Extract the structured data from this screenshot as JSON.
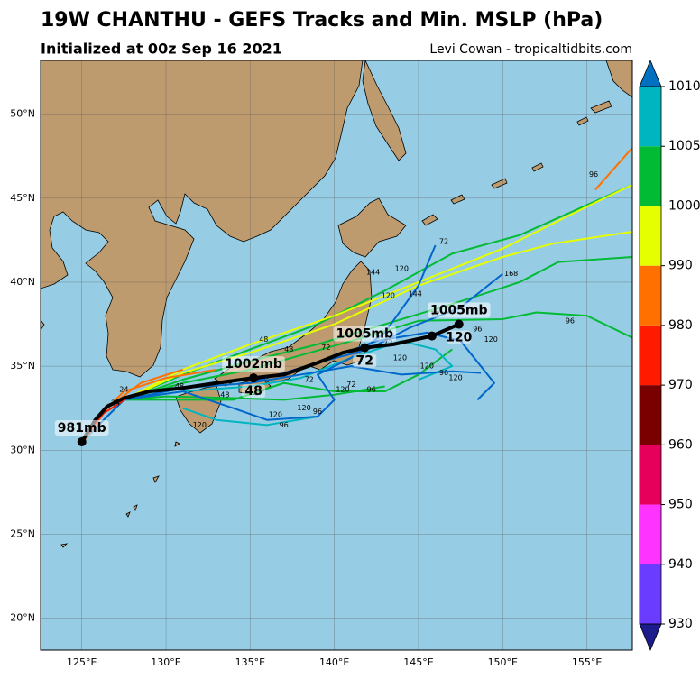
{
  "header": {
    "title": "19W CHANTHU - GEFS Tracks and Min. MSLP (hPa)",
    "subtitle": "Initialized at 00z Sep 16 2021",
    "credit": "Levi Cowan - tropicaltidbits.com"
  },
  "map": {
    "lon_range": [
      122.55,
      157.7
    ],
    "lat_range": [
      18.1,
      53.2
    ],
    "lon_ticks": [
      {
        "value": 125,
        "label": "125°E"
      },
      {
        "value": 130,
        "label": "130°E"
      },
      {
        "value": 135,
        "label": "135°E"
      },
      {
        "value": 140,
        "label": "140°E"
      },
      {
        "value": 145,
        "label": "145°E"
      },
      {
        "value": 150,
        "label": "150°E"
      },
      {
        "value": 155,
        "label": "155°E"
      }
    ],
    "lat_ticks": [
      {
        "value": 20,
        "label": "20°N"
      },
      {
        "value": 25,
        "label": "25°N"
      },
      {
        "value": 30,
        "label": "30°N"
      },
      {
        "value": 35,
        "label": "35°N"
      },
      {
        "value": 40,
        "label": "40°N"
      },
      {
        "value": 45,
        "label": "45°N"
      },
      {
        "value": 50,
        "label": "50°N"
      }
    ]
  },
  "members": [
    {
      "color": "#00bb33",
      "lon": [
        125,
        127.5,
        131,
        135,
        139,
        143,
        147,
        151,
        157.7
      ],
      "lat": [
        30.5,
        33,
        34.5,
        36,
        37.5,
        39.5,
        41.7,
        42.8,
        45.8
      ]
    },
    {
      "color": "#00bb33",
      "lon": [
        125,
        127.5,
        131,
        135,
        139,
        143,
        147,
        151,
        153.3,
        157.7
      ],
      "lat": [
        30.5,
        33,
        34.2,
        35.3,
        36.3,
        37.5,
        38.7,
        40,
        41.2,
        41.5
      ]
    },
    {
      "color": "#00bb33",
      "lon": [
        125,
        127.5,
        131,
        135,
        141,
        145,
        150,
        152,
        155,
        157.7
      ],
      "lat": [
        30.5,
        33,
        34,
        34.8,
        36.5,
        37.7,
        37.8,
        38.2,
        38,
        36.7
      ]
    },
    {
      "color": "#00bb33",
      "lon": [
        127.5,
        130,
        134,
        137,
        140,
        143,
        145,
        147
      ],
      "lat": [
        33,
        33,
        33,
        34,
        33.5,
        33.5,
        34.5,
        36
      ]
    },
    {
      "color": "#00bb33",
      "lon": [
        127.5,
        130,
        134,
        137,
        140,
        143
      ],
      "lat": [
        33,
        33.2,
        33.1,
        33,
        33.3,
        33.8
      ]
    },
    {
      "color": "#e6ff00",
      "lon": [
        125,
        127.5,
        131,
        135,
        140,
        145,
        150,
        153,
        157.7
      ],
      "lat": [
        30.5,
        33,
        34.6,
        35.8,
        37.5,
        39.8,
        41.5,
        42.3,
        43
      ]
    },
    {
      "color": "#e6ff00",
      "lon": [
        125,
        127.5,
        131,
        135,
        140,
        145,
        150,
        155,
        157.7
      ],
      "lat": [
        30.5,
        33,
        34.8,
        36.3,
        38,
        40,
        42,
        44.5,
        45.8
      ]
    },
    {
      "color": "#ff7000",
      "lon": [
        155.5,
        157.7
      ],
      "lat": [
        45.5,
        48
      ]
    },
    {
      "color": "#00b4c0",
      "lon": [
        125,
        127.5,
        131,
        135,
        138,
        141,
        144,
        146,
        147,
        145
      ],
      "lat": [
        30.5,
        33,
        33.5,
        33.8,
        34.3,
        35.5,
        36.5,
        36,
        35,
        34.2
      ]
    },
    {
      "color": "#00b4c0",
      "lon": [
        131,
        133,
        136,
        139
      ],
      "lat": [
        32.5,
        31.8,
        31.5,
        32
      ]
    },
    {
      "color": "#0066cc",
      "lon": [
        125,
        127.5,
        131,
        134,
        136,
        139,
        140,
        139,
        141,
        143,
        145,
        146
      ],
      "lat": [
        30.5,
        33,
        33.5,
        32.5,
        31.8,
        32,
        33,
        34.5,
        35.5,
        37,
        39.8,
        42.2
      ]
    },
    {
      "color": "#0066cc",
      "lon": [
        125,
        127.5,
        131,
        135,
        139,
        142,
        144.5,
        147.5,
        150
      ],
      "lat": [
        30.5,
        33,
        33.7,
        34,
        35.2,
        36,
        37.3,
        38.5,
        40.5
      ]
    },
    {
      "color": "#0066cc",
      "lon": [
        135,
        138,
        141,
        144,
        147,
        148.7
      ],
      "lat": [
        34,
        34.5,
        35,
        34.5,
        34.7,
        34.6
      ]
    },
    {
      "color": "#0066cc",
      "lon": [
        139,
        142.5,
        145.5,
        147.5,
        149.5,
        148.5
      ],
      "lat": [
        35.2,
        36.5,
        37,
        36.5,
        34,
        33
      ]
    },
    {
      "color": "#ff7000",
      "lon": [
        125,
        126,
        127.5,
        130,
        133
      ],
      "lat": [
        30.5,
        32,
        33.5,
        34.3,
        34.8
      ]
    },
    {
      "color": "#ff7000",
      "lon": [
        125,
        126.5,
        128.5,
        131
      ],
      "lat": [
        30.4,
        32.5,
        34,
        34.8
      ]
    },
    {
      "color": "#ff1a00",
      "lon": [
        124.8,
        126.3,
        128
      ],
      "lat": [
        30.3,
        32.2,
        33.3
      ]
    }
  ],
  "hour_labels": [
    {
      "lon": 135.8,
      "lat": 36.6,
      "text": "48"
    },
    {
      "lon": 137.3,
      "lat": 36,
      "text": "48"
    },
    {
      "lon": 139.5,
      "lat": 36.1,
      "text": "72"
    },
    {
      "lon": 143.2,
      "lat": 36.4,
      "text": "72"
    },
    {
      "lon": 146,
      "lat": 38.1,
      "text": "72"
    },
    {
      "lon": 148.5,
      "lat": 37.2,
      "text": "96"
    },
    {
      "lon": 154,
      "lat": 37.7,
      "text": "96"
    },
    {
      "lon": 155.4,
      "lat": 46.4,
      "text": "96"
    },
    {
      "lon": 146.5,
      "lat": 42.4,
      "text": "72"
    },
    {
      "lon": 150.5,
      "lat": 40.5,
      "text": "168"
    },
    {
      "lon": 142.3,
      "lat": 40.6,
      "text": "144"
    },
    {
      "lon": 144,
      "lat": 40.8,
      "text": "120"
    },
    {
      "lon": 144.8,
      "lat": 39.3,
      "text": "144"
    },
    {
      "lon": 143.2,
      "lat": 39.2,
      "text": "120"
    },
    {
      "lon": 149.3,
      "lat": 36.6,
      "text": "120"
    },
    {
      "lon": 143.9,
      "lat": 35.5,
      "text": "120"
    },
    {
      "lon": 145.5,
      "lat": 35,
      "text": "120"
    },
    {
      "lon": 147.2,
      "lat": 34.3,
      "text": "120"
    },
    {
      "lon": 146.5,
      "lat": 34.6,
      "text": "96"
    },
    {
      "lon": 141,
      "lat": 33.9,
      "text": "72"
    },
    {
      "lon": 140.5,
      "lat": 33.6,
      "text": "120"
    },
    {
      "lon": 142.2,
      "lat": 33.6,
      "text": "96"
    },
    {
      "lon": 136.5,
      "lat": 32.1,
      "text": "120"
    },
    {
      "lon": 132,
      "lat": 31.5,
      "text": "120"
    },
    {
      "lon": 137,
      "lat": 31.5,
      "text": "96"
    },
    {
      "lon": 139,
      "lat": 32.3,
      "text": "96"
    },
    {
      "lon": 138.2,
      "lat": 32.5,
      "text": "120"
    },
    {
      "lon": 130.8,
      "lat": 33.8,
      "text": "48"
    },
    {
      "lon": 133.5,
      "lat": 33.3,
      "text": "48"
    },
    {
      "lon": 127.5,
      "lat": 33.6,
      "text": "24"
    },
    {
      "lon": 127,
      "lat": 32.8,
      "text": "24"
    },
    {
      "lon": 138.5,
      "lat": 34.2,
      "text": "72"
    }
  ],
  "mean_track": {
    "color": "#000000",
    "lon": [
      125,
      125.8,
      126.5,
      127.5,
      129,
      131,
      133,
      135.2,
      137,
      139,
      140.5,
      141.8,
      143.5,
      145.8,
      147.4
    ],
    "lat": [
      30.5,
      31.8,
      32.6,
      33.1,
      33.5,
      33.7,
      34,
      34.3,
      34.5,
      35.2,
      35.8,
      36.1,
      36.3,
      36.8,
      37.5
    ],
    "points": [
      {
        "lon": 125,
        "lat": 30.5,
        "label": "981mb"
      },
      {
        "lon": 135.2,
        "lat": 34.3,
        "label": "1002mb",
        "hour": "48"
      },
      {
        "lon": 141.8,
        "lat": 36.1,
        "label": "1005mb",
        "hour": "72"
      },
      {
        "lon": 145.8,
        "lat": 36.8
      },
      {
        "lon": 147.4,
        "lat": 37.5,
        "label": "1005mb",
        "hour": "120"
      }
    ]
  },
  "colorbar": {
    "levels": [
      930,
      940,
      950,
      960,
      970,
      980,
      990,
      1000,
      1005,
      1010
    ],
    "colors": [
      "#6a3cff",
      "#ff33ff",
      "#e6005c",
      "#7a0000",
      "#ff1a00",
      "#ff7000",
      "#e6ff00",
      "#00bb33",
      "#00b4c0"
    ],
    "under": "#1c1c8c",
    "over": "#0070c0"
  }
}
